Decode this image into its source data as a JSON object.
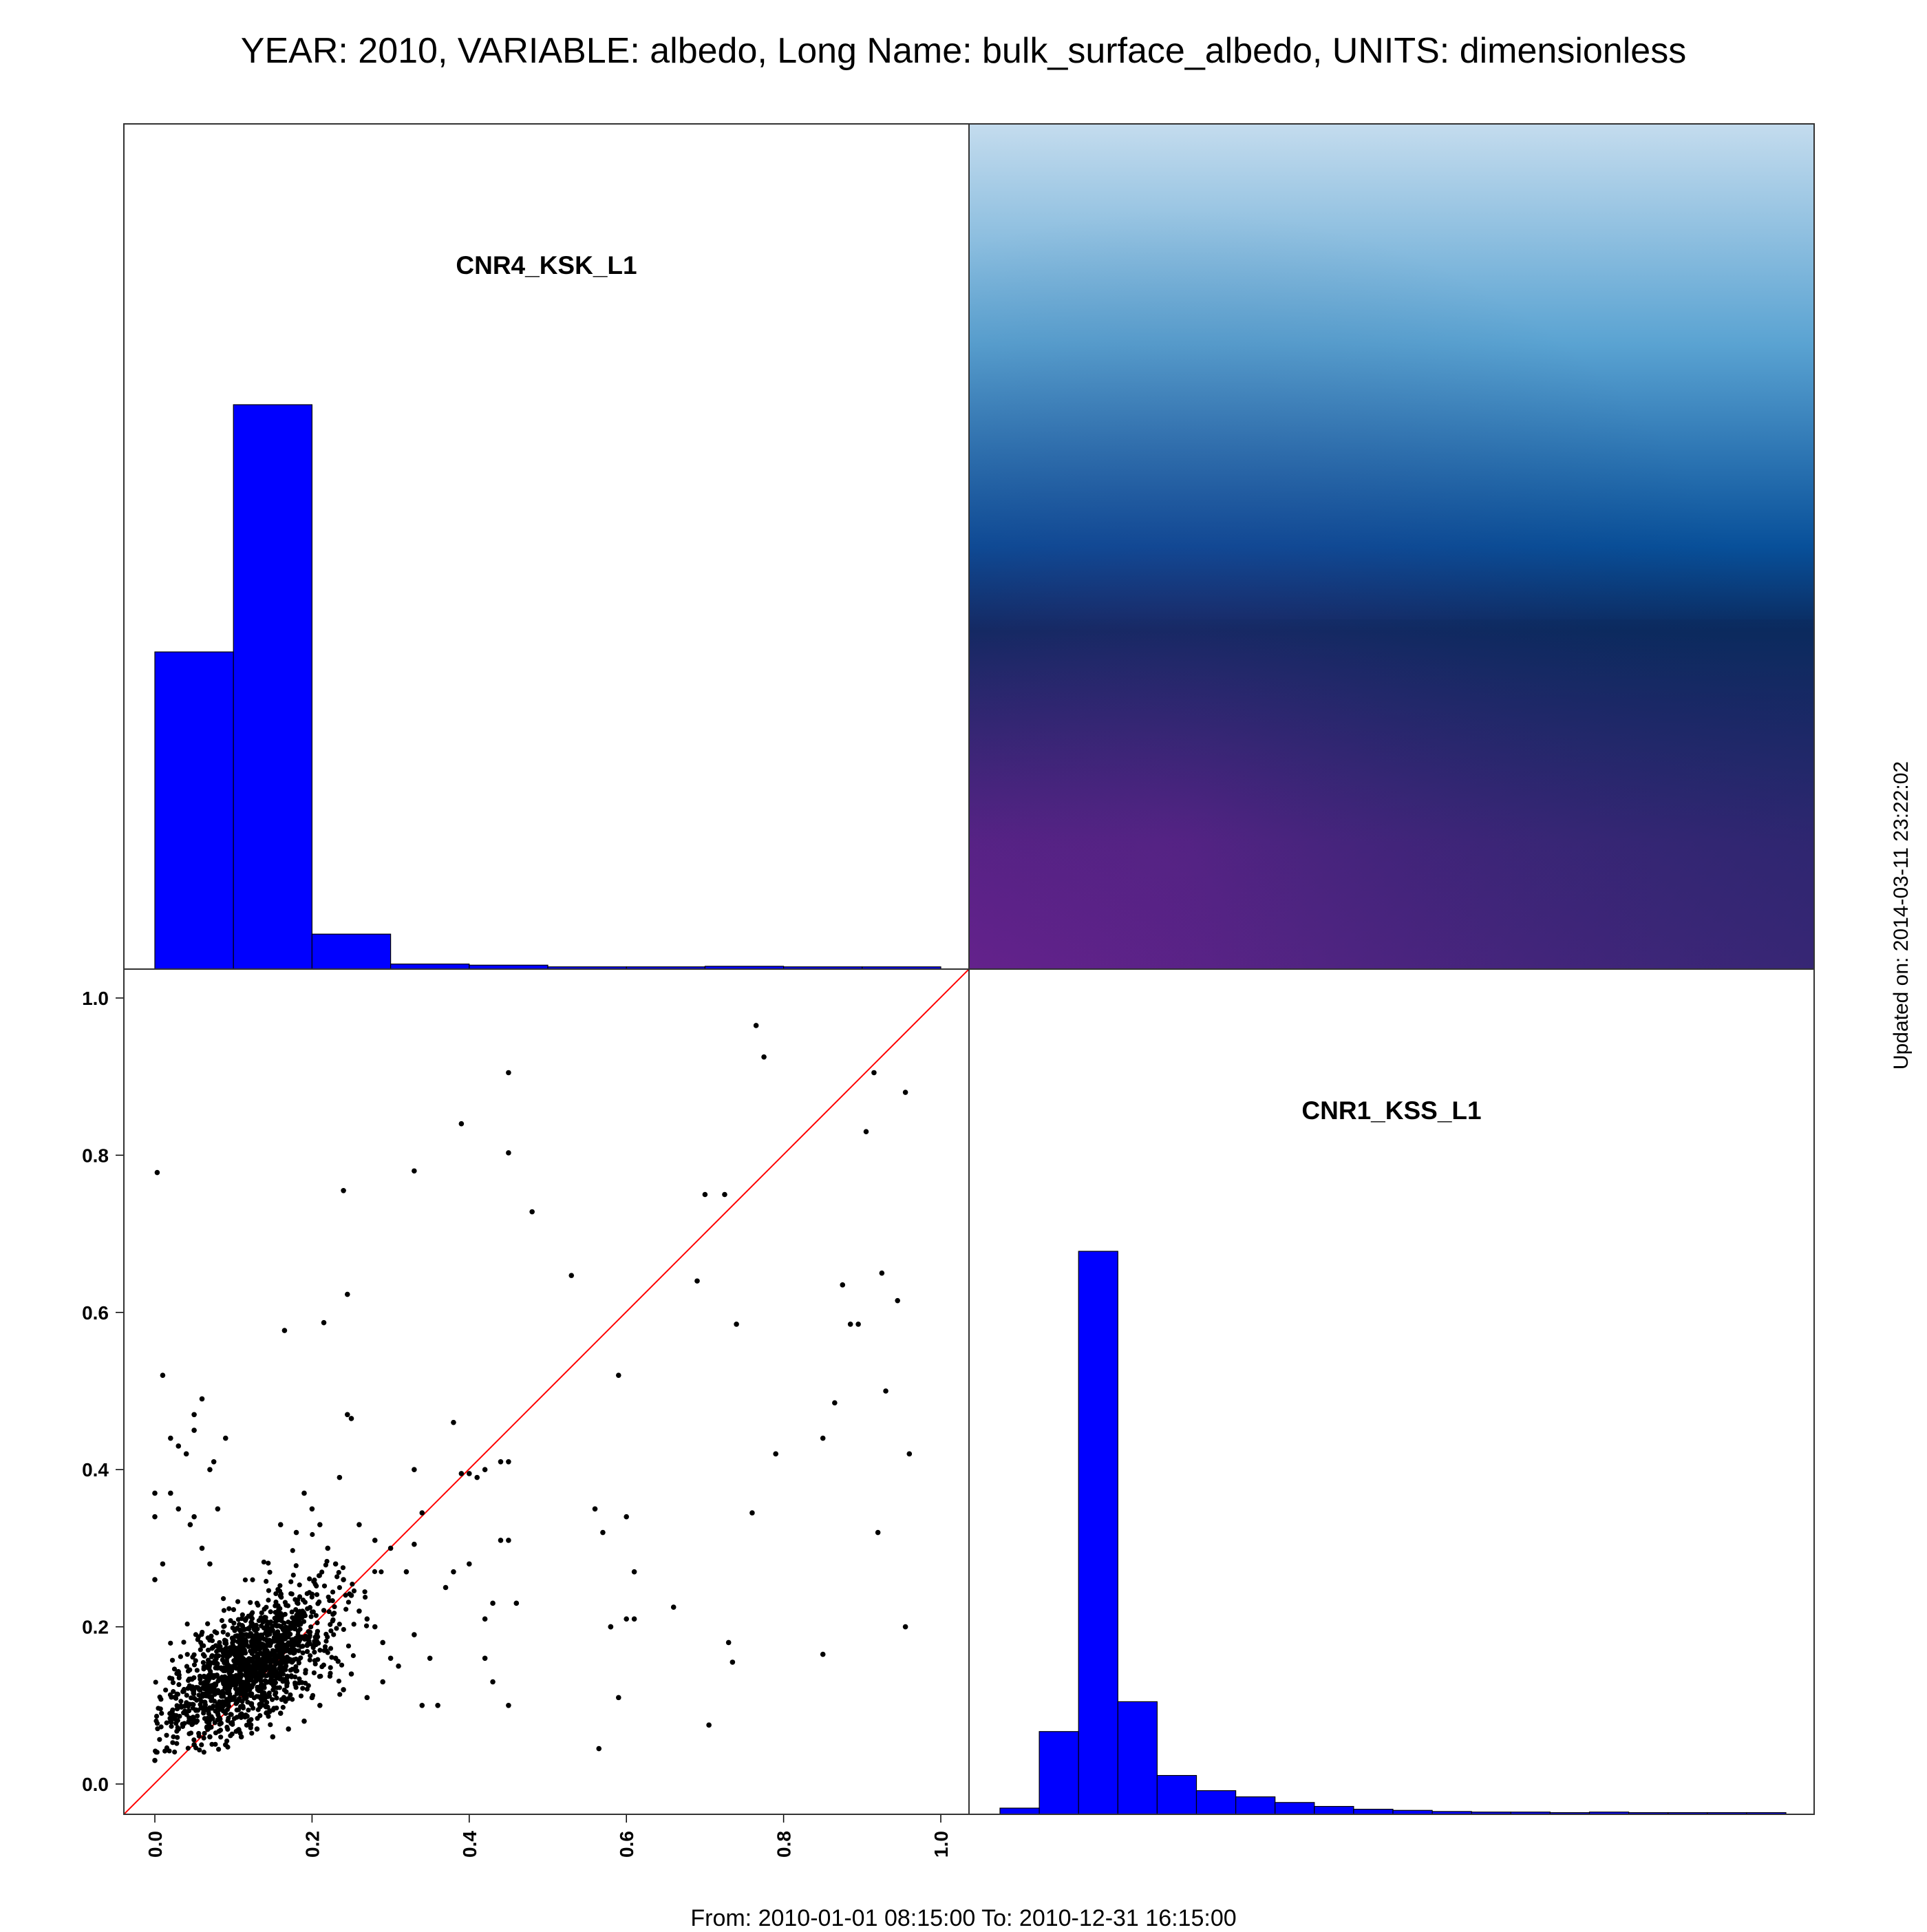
{
  "title": "YEAR: 2010, VARIABLE: albedo, Long Name: bulk_surface_albedo, UNITS: dimensionless",
  "footer": "From: 2010-01-01 08:15:00 To: 2010-12-31 16:15:00",
  "updated": "Updated on: 2014-03-11 23:22:02",
  "colors": {
    "histogram": "#0000ff",
    "scatter": "#000000",
    "identity_line": "#ff0000",
    "density_top": "#c4dcee",
    "density_mid": "#0b2a5e",
    "density_low": "#6c2190"
  },
  "chart_data": [
    {
      "type": "bar",
      "panel": "top-left",
      "title": "CNR4_KSK_L1",
      "bin_edges": [
        0.0,
        0.1,
        0.2,
        0.3,
        0.4,
        0.5,
        0.6,
        0.7,
        0.8,
        0.9,
        1.0
      ],
      "values": [
        0.562,
        1.0,
        0.062,
        0.009,
        0.007,
        0.004,
        0.004,
        0.005,
        0.004,
        0.004
      ],
      "value_scale": "relative to tallest bin"
    },
    {
      "type": "heatmap",
      "panel": "top-right",
      "title": "",
      "colormap": "kernel density, light blue (low) to dark navy to purple (high)"
    },
    {
      "type": "scatter",
      "panel": "bottom-left",
      "xlabel": "",
      "ylabel": "",
      "xlim": [
        0.0,
        1.0
      ],
      "ylim": [
        0.0,
        1.0
      ],
      "x_ticks": [
        "0.0",
        "0.2",
        "0.4",
        "0.6",
        "0.8",
        "1.0"
      ],
      "y_ticks": [
        "0.0",
        "0.2",
        "0.4",
        "0.6",
        "0.8",
        "1.0"
      ],
      "reference_line": "y = x",
      "points": [
        [
          0.003,
          0.778
        ],
        [
          0.01,
          0.52
        ],
        [
          0.19,
          0.37
        ],
        [
          0.165,
          0.577
        ],
        [
          0.215,
          0.587
        ],
        [
          0.245,
          0.623
        ],
        [
          0.24,
          0.755
        ],
        [
          0.25,
          0.465
        ],
        [
          0.245,
          0.47
        ],
        [
          0.235,
          0.39
        ],
        [
          0.26,
          0.33
        ],
        [
          0.28,
          0.31
        ],
        [
          0.3,
          0.3
        ],
        [
          0.32,
          0.27
        ],
        [
          0.33,
          0.305
        ],
        [
          0.34,
          0.345
        ],
        [
          0.33,
          0.4
        ],
        [
          0.33,
          0.78
        ],
        [
          0.39,
          0.84
        ],
        [
          0.45,
          0.905
        ],
        [
          0.45,
          0.803
        ],
        [
          0.48,
          0.728
        ],
        [
          0.53,
          0.647
        ],
        [
          0.38,
          0.46
        ],
        [
          0.39,
          0.395
        ],
        [
          0.4,
          0.395
        ],
        [
          0.41,
          0.39
        ],
        [
          0.42,
          0.4
        ],
        [
          0.44,
          0.41
        ],
        [
          0.45,
          0.41
        ],
        [
          0.45,
          0.31
        ],
        [
          0.44,
          0.31
        ],
        [
          0.4,
          0.28
        ],
        [
          0.38,
          0.27
        ],
        [
          0.37,
          0.25
        ],
        [
          0.33,
          0.19
        ],
        [
          0.35,
          0.16
        ],
        [
          0.34,
          0.1
        ],
        [
          0.36,
          0.1
        ],
        [
          0.42,
          0.21
        ],
        [
          0.43,
          0.23
        ],
        [
          0.42,
          0.16
        ],
        [
          0.43,
          0.13
        ],
        [
          0.45,
          0.1
        ],
        [
          0.46,
          0.23
        ],
        [
          0.56,
          0.35
        ],
        [
          0.57,
          0.32
        ],
        [
          0.58,
          0.2
        ],
        [
          0.58,
          0.2
        ],
        [
          0.6,
          0.21
        ],
        [
          0.6,
          0.34
        ],
        [
          0.59,
          0.52
        ],
        [
          0.61,
          0.27
        ],
        [
          0.61,
          0.21
        ],
        [
          0.59,
          0.11
        ],
        [
          0.565,
          0.045
        ],
        [
          0.66,
          0.225
        ],
        [
          0.705,
          0.075
        ],
        [
          0.73,
          0.18
        ],
        [
          0.735,
          0.155
        ],
        [
          0.7,
          0.75
        ],
        [
          0.725,
          0.75
        ],
        [
          0.69,
          0.64
        ],
        [
          0.74,
          0.585
        ],
        [
          0.76,
          0.345
        ],
        [
          0.765,
          0.965
        ],
        [
          0.775,
          0.925
        ],
        [
          0.79,
          0.42
        ],
        [
          0.85,
          0.44
        ],
        [
          0.865,
          0.485
        ],
        [
          0.875,
          0.635
        ],
        [
          0.885,
          0.585
        ],
        [
          0.895,
          0.585
        ],
        [
          0.905,
          0.83
        ],
        [
          0.915,
          0.905
        ],
        [
          0.92,
          0.32
        ],
        [
          0.925,
          0.65
        ],
        [
          0.93,
          0.5
        ],
        [
          0.945,
          0.615
        ],
        [
          0.955,
          0.88
        ],
        [
          0.96,
          0.42
        ],
        [
          0.955,
          0.2
        ],
        [
          0.85,
          0.165
        ],
        [
          0.0,
          0.03
        ],
        [
          0.0,
          0.37
        ],
        [
          0.0,
          0.34
        ],
        [
          0.0,
          0.26
        ],
        [
          0.01,
          0.28
        ],
        [
          0.02,
          0.44
        ],
        [
          0.03,
          0.43
        ],
        [
          0.04,
          0.42
        ],
        [
          0.05,
          0.47
        ],
        [
          0.06,
          0.49
        ],
        [
          0.05,
          0.45
        ],
        [
          0.09,
          0.44
        ],
        [
          0.075,
          0.41
        ],
        [
          0.07,
          0.4
        ],
        [
          0.05,
          0.34
        ],
        [
          0.045,
          0.33
        ],
        [
          0.06,
          0.3
        ],
        [
          0.07,
          0.28
        ],
        [
          0.02,
          0.37
        ],
        [
          0.03,
          0.35
        ],
        [
          0.08,
          0.35
        ],
        [
          0.16,
          0.33
        ],
        [
          0.18,
          0.32
        ],
        [
          0.2,
          0.35
        ],
        [
          0.21,
          0.33
        ],
        [
          0.22,
          0.3
        ],
        [
          0.23,
          0.28
        ],
        [
          0.24,
          0.26
        ],
        [
          0.25,
          0.24
        ],
        [
          0.26,
          0.22
        ],
        [
          0.27,
          0.21
        ],
        [
          0.28,
          0.2
        ],
        [
          0.29,
          0.18
        ],
        [
          0.3,
          0.16
        ],
        [
          0.31,
          0.15
        ],
        [
          0.29,
          0.13
        ],
        [
          0.27,
          0.11
        ],
        [
          0.25,
          0.14
        ],
        [
          0.24,
          0.12
        ],
        [
          0.23,
          0.16
        ],
        [
          0.21,
          0.1
        ],
        [
          0.19,
          0.08
        ],
        [
          0.17,
          0.07
        ],
        [
          0.15,
          0.06
        ],
        [
          0.13,
          0.07
        ],
        [
          0.11,
          0.06
        ],
        [
          0.09,
          0.05
        ],
        [
          0.07,
          0.06
        ],
        [
          0.05,
          0.05
        ],
        [
          0.03,
          0.07
        ],
        [
          0.02,
          0.08
        ],
        [
          0.05,
          0.08
        ],
        [
          0.08,
          0.09
        ],
        [
          0.12,
          0.08
        ],
        [
          0.16,
          0.09
        ],
        [
          0.2,
          0.11
        ]
      ],
      "cluster": {
        "x_mean": 0.12,
        "y_mean": 0.15,
        "x_sd": 0.05,
        "y_sd": 0.045,
        "n": 1400
      }
    },
    {
      "type": "bar",
      "panel": "bottom-right",
      "title": "CNR1_KSS_L1",
      "bin_edges": [
        0.0,
        0.05,
        0.1,
        0.15,
        0.2,
        0.25,
        0.3,
        0.35,
        0.4,
        0.45,
        0.5,
        0.55,
        0.6,
        0.65,
        0.7,
        0.75,
        0.8,
        0.85,
        0.9,
        0.95,
        1.0
      ],
      "values": [
        0.011,
        0.147,
        1.0,
        0.2,
        0.069,
        0.042,
        0.031,
        0.021,
        0.014,
        0.009,
        0.007,
        0.005,
        0.004,
        0.004,
        0.003,
        0.004,
        0.003,
        0.003,
        0.003,
        0.003
      ],
      "value_scale": "relative to tallest bin"
    }
  ]
}
